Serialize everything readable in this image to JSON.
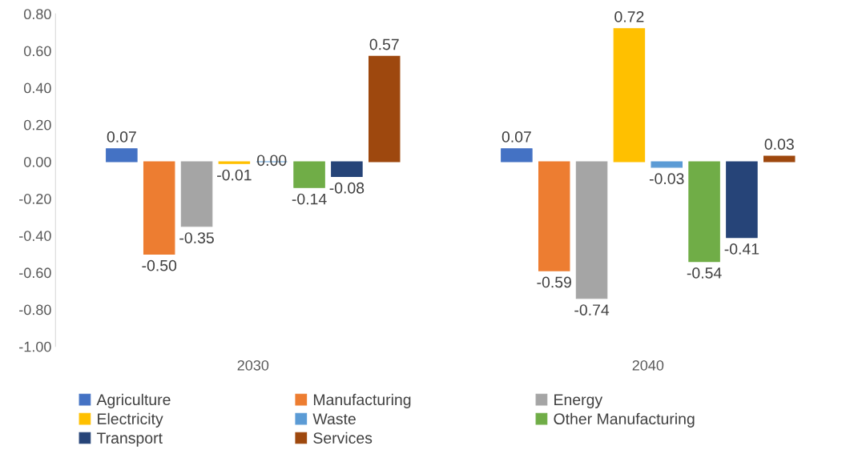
{
  "chart_data": {
    "type": "bar",
    "categories": [
      "2030",
      "2040"
    ],
    "series": [
      {
        "name": "Agriculture",
        "color": "#4472c4",
        "values": [
          0.07,
          0.07
        ],
        "value_labels": [
          "0.07",
          "0.07"
        ]
      },
      {
        "name": "Manufacturing",
        "color": "#ed7d31",
        "values": [
          -0.5,
          -0.59
        ],
        "value_labels": [
          "-0.50",
          "-0.59"
        ]
      },
      {
        "name": "Energy",
        "color": "#a5a5a5",
        "values": [
          -0.35,
          -0.74
        ],
        "value_labels": [
          "-0.35",
          "-0.74"
        ]
      },
      {
        "name": "Electricity",
        "color": "#ffc000",
        "values": [
          -0.01,
          0.72
        ],
        "value_labels": [
          "-0.01",
          "0.72"
        ]
      },
      {
        "name": "Waste",
        "color": "#5b9bd5",
        "values": [
          0.0,
          -0.03
        ],
        "value_labels": [
          "0.00",
          "-0.03"
        ]
      },
      {
        "name": "Other Manufacturing",
        "color": "#70ad47",
        "values": [
          -0.14,
          -0.54
        ],
        "value_labels": [
          "-0.14",
          "-0.54"
        ]
      },
      {
        "name": "Transport",
        "color": "#264478",
        "values": [
          -0.08,
          -0.41
        ],
        "value_labels": [
          "-0.08",
          "-0.41"
        ]
      },
      {
        "name": "Services",
        "color": "#9e480e",
        "values": [
          0.57,
          0.03
        ],
        "value_labels": [
          "0.57",
          "0.03"
        ]
      }
    ],
    "ylim": [
      -1.0,
      0.8
    ],
    "yticks": [
      {
        "value": -1.0,
        "label": "-1.00"
      },
      {
        "value": -0.8,
        "label": "-0.80"
      },
      {
        "value": -0.6,
        "label": "-0.60"
      },
      {
        "value": -0.4,
        "label": "-0.40"
      },
      {
        "value": -0.2,
        "label": "-0.20"
      },
      {
        "value": 0.0,
        "label": "0.00"
      },
      {
        "value": 0.2,
        "label": "0.20"
      },
      {
        "value": 0.4,
        "label": "0.40"
      },
      {
        "value": 0.6,
        "label": "0.60"
      },
      {
        "value": 0.8,
        "label": "0.80"
      }
    ],
    "grid": false,
    "legend": "bottom"
  }
}
